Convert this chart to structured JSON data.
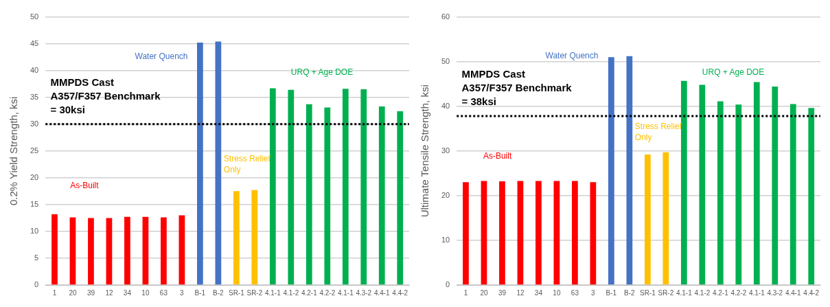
{
  "chart_data": [
    {
      "type": "bar",
      "ylabel": "0.2% Yield Strength, ksi",
      "categories": [
        "1",
        "20",
        "39",
        "12",
        "34",
        "10",
        "63",
        "3",
        "B-1",
        "B-2",
        "SR-1",
        "SR-2",
        "4.1-1",
        "4.1-2",
        "4.2-1",
        "4.2-2",
        "4.1-1",
        "4.3-2",
        "4.4-1",
        "4.4-2"
      ],
      "values": [
        13.2,
        12.6,
        12.5,
        12.5,
        12.7,
        12.7,
        12.6,
        13.0,
        45.2,
        45.4,
        17.5,
        17.7,
        36.7,
        36.4,
        33.7,
        33.1,
        36.6,
        36.5,
        33.3,
        32.4
      ],
      "colors": [
        "#ff0000",
        "#ff0000",
        "#ff0000",
        "#ff0000",
        "#ff0000",
        "#ff0000",
        "#ff0000",
        "#ff0000",
        "#4472c4",
        "#4472c4",
        "#ffc000",
        "#ffc000",
        "#00b050",
        "#00b050",
        "#00b050",
        "#00b050",
        "#00b050",
        "#00b050",
        "#00b050",
        "#00b050"
      ],
      "ylim": [
        0,
        50
      ],
      "yticks": [
        0,
        5,
        10,
        15,
        20,
        25,
        30,
        35,
        40,
        45,
        50
      ],
      "grid": "y",
      "ref_lines": [
        {
          "axis": "y",
          "value": 30,
          "label": "MMPDS Cast\nA357/F357 Benchmark\n= 30ksi",
          "color": "#000000",
          "line_style": "dotted"
        }
      ],
      "annotations": [
        "As-Built",
        "Water Quench",
        "Stress Relief\nOnly",
        "URQ + Age DOE"
      ]
    },
    {
      "type": "bar",
      "ylabel": "Ultimate Tensile Strength, ksi",
      "categories": [
        "1",
        "20",
        "39",
        "12",
        "34",
        "10",
        "63",
        "3",
        "B-1",
        "B-2",
        "SR-1",
        "SR-2",
        "4.1-1",
        "4.1-2",
        "4.2-1",
        "4.2-2",
        "4.1-1",
        "4.3-2",
        "4.4-1",
        "4.4-2"
      ],
      "values": [
        23.0,
        23.3,
        23.2,
        23.3,
        23.3,
        23.3,
        23.3,
        23.0,
        51.0,
        51.2,
        29.2,
        29.7,
        45.7,
        44.8,
        41.1,
        40.4,
        45.4,
        44.4,
        40.5,
        39.6
      ],
      "colors": [
        "#ff0000",
        "#ff0000",
        "#ff0000",
        "#ff0000",
        "#ff0000",
        "#ff0000",
        "#ff0000",
        "#ff0000",
        "#4472c4",
        "#4472c4",
        "#ffc000",
        "#ffc000",
        "#00b050",
        "#00b050",
        "#00b050",
        "#00b050",
        "#00b050",
        "#00b050",
        "#00b050",
        "#00b050"
      ],
      "ylim": [
        0,
        60
      ],
      "yticks": [
        0,
        10,
        20,
        30,
        40,
        50,
        60
      ],
      "grid": "y",
      "ref_lines": [
        {
          "axis": "y",
          "value": 37.8,
          "label": "MMPDS Cast\nA357/F357 Benchmark\n= 38ksi",
          "color": "#000000",
          "line_style": "dotted"
        }
      ],
      "annotations": [
        "As-Built",
        "Water Quench",
        "Stress Relief\nOnly",
        "URQ + Age DOE"
      ]
    }
  ]
}
